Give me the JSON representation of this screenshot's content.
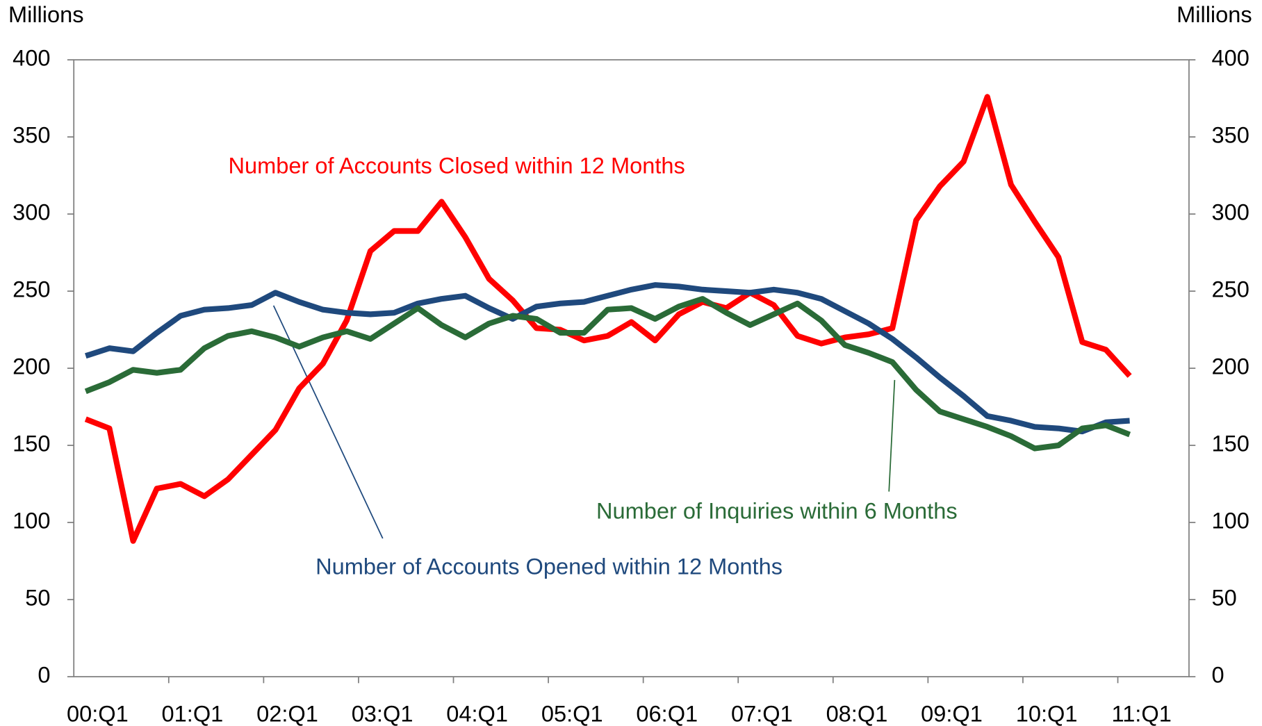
{
  "chart_data": {
    "type": "line",
    "y_label": "Millions",
    "y2_label": "Millions",
    "categories": [
      "00:Q1",
      null,
      null,
      null,
      "01:Q1",
      null,
      null,
      null,
      "02:Q1",
      null,
      null,
      null,
      "03:Q1",
      null,
      null,
      null,
      "04:Q1",
      null,
      null,
      null,
      "05:Q1",
      null,
      null,
      null,
      "06:Q1",
      null,
      null,
      null,
      "07:Q1",
      null,
      null,
      null,
      "08:Q1",
      null,
      null,
      null,
      "09:Q1",
      null,
      null,
      null,
      "10:Q1",
      null,
      null,
      null,
      "11:Q1"
    ],
    "series": [
      {
        "name": "Number of Accounts Closed within 12 Months",
        "color": "#ff0000",
        "values": [
          167,
          161,
          88,
          122,
          125,
          117,
          128,
          144,
          160,
          187,
          203,
          231,
          276,
          289,
          289,
          308,
          285,
          258,
          244,
          226,
          225,
          218,
          221,
          230,
          218,
          235,
          243,
          239,
          249,
          241,
          221,
          216,
          220,
          222,
          226,
          296,
          318,
          334,
          376,
          319,
          295,
          272,
          217,
          212,
          195
        ]
      },
      {
        "name": "Number of Accounts Opened within 12 Months",
        "color": "#1f497d",
        "values": [
          208,
          213,
          211,
          223,
          234,
          238,
          239,
          241,
          249,
          243,
          238,
          236,
          235,
          236,
          242,
          245,
          247,
          239,
          232,
          240,
          242,
          243,
          247,
          251,
          254,
          253,
          251,
          250,
          249,
          251,
          249,
          245,
          237,
          229,
          219,
          207,
          194,
          182,
          169,
          166,
          162,
          161,
          159,
          165,
          166
        ]
      },
      {
        "name": "Number of Inquiries within 6 Months",
        "color": "#2a6b37",
        "values": [
          185,
          191,
          199,
          197,
          199,
          213,
          221,
          224,
          220,
          214,
          220,
          224,
          219,
          229,
          239,
          228,
          220,
          229,
          234,
          232,
          223,
          223,
          238,
          239,
          232,
          240,
          245,
          236,
          228,
          235,
          242,
          231,
          215,
          210,
          204,
          186,
          172,
          167,
          162,
          156,
          148,
          150,
          161,
          163,
          157
        ]
      }
    ],
    "ylim": [
      0,
      400
    ],
    "yticks": [
      0,
      50,
      100,
      150,
      200,
      250,
      300,
      350,
      400
    ],
    "y2lim": [
      0,
      400
    ],
    "y2ticks": [
      0,
      50,
      100,
      150,
      200,
      250,
      300,
      350,
      400
    ]
  }
}
